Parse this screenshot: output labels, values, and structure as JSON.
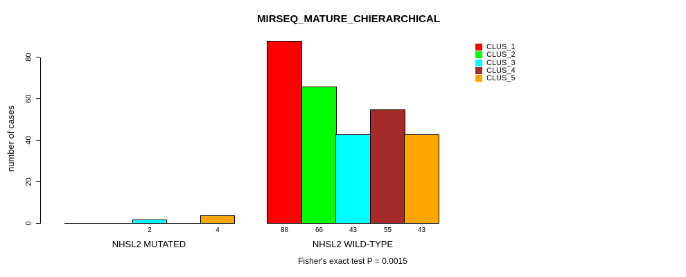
{
  "chart_data": {
    "type": "bar",
    "title": "MIRSEQ_MATURE_CHIERARCHICAL",
    "categories": [
      "NHSL2 MUTATED",
      "NHSL2 WILD-TYPE"
    ],
    "series": [
      {
        "name": "CLUS_1",
        "color": "#FF0000",
        "values": [
          0,
          88
        ]
      },
      {
        "name": "CLUS_2",
        "color": "#00FF00",
        "values": [
          0,
          66
        ]
      },
      {
        "name": "CLUS_3",
        "color": "#00FFFF",
        "values": [
          2,
          43
        ]
      },
      {
        "name": "CLUS_4",
        "color": "#A52A2A",
        "values": [
          0,
          55
        ]
      },
      {
        "name": "CLUS_5",
        "color": "#FFA500",
        "values": [
          4,
          43
        ]
      }
    ],
    "ylabel": "number of cases",
    "xlabel": "Fisher's exact test P = 0.0015",
    "ylim": [
      0,
      88
    ],
    "yticks": [
      0,
      20,
      40,
      60,
      80
    ],
    "grid": false,
    "legend_position": "top-right",
    "bar_labels": true,
    "bar_label_rule": "value labels shown only for bars greater than 0"
  }
}
